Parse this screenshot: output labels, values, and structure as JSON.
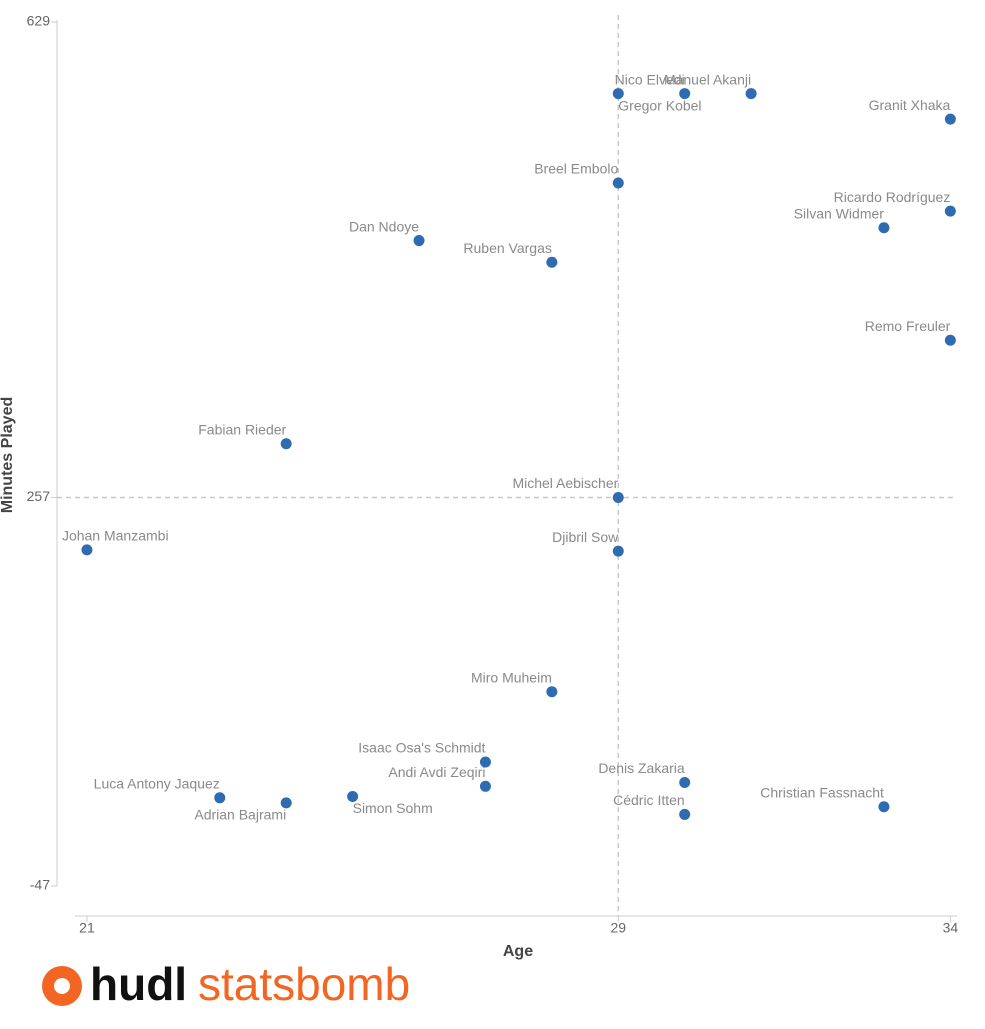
{
  "chart_data": {
    "type": "scatter",
    "x_label": "Age",
    "y_label": "Minutes Played",
    "labels": [
      "Nico Elvedi",
      "Manuel Akanji",
      "Gregor Kobel",
      "Granit Xhaka",
      "Breel Embolo",
      "Ricardo Rodríguez",
      "Silvan Widmer",
      "Dan Ndoye",
      "Ruben Vargas",
      "Remo Freuler",
      "Fabian Rieder",
      "Michel Aebischer",
      "Johan Manzambi",
      "Djibril Sow",
      "Miro Muheim",
      "Isaac Osa's Schmidt",
      "Andi Avdi Zeqiri",
      "Denis Zakaria",
      "Luca Antony Jaquez",
      "Adrian Bajrami",
      "Simon Sohm",
      "Cédric Itten",
      "Christian Fassnacht"
    ],
    "x": [
      30,
      31,
      29,
      34,
      29,
      34,
      33,
      26,
      28,
      34,
      24,
      29,
      21,
      29,
      28,
      27,
      27,
      30,
      23,
      24,
      25,
      30,
      33
    ],
    "values": [
      573,
      573,
      573,
      553,
      503,
      481,
      468,
      458,
      441,
      380,
      299,
      257,
      216,
      215,
      105,
      50,
      31,
      34,
      22,
      18,
      23,
      9,
      15
    ],
    "color": "#2f6bb0",
    "xlim": [
      20.82,
      34.1
    ],
    "ylim": [
      -47,
      629
    ],
    "xticks": [
      21,
      29,
      34
    ],
    "yticks": [
      -47,
      257,
      629
    ],
    "median_lines": {
      "x": 29,
      "y": 257
    }
  },
  "logo": {
    "brand": "hudl",
    "product": "statsbomb"
  }
}
